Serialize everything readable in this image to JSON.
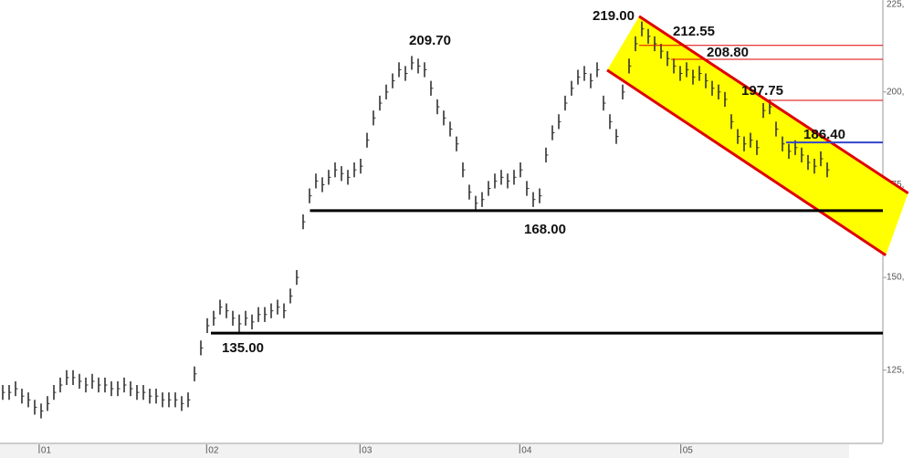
{
  "chart_data": {
    "type": "candlestick",
    "xlim": [
      0,
      130
    ],
    "xticks": [
      {
        "value": 6.7,
        "label": "01"
      },
      {
        "value": 32.9,
        "label": "02"
      },
      {
        "value": 56.9,
        "label": "03"
      },
      {
        "value": 81.9,
        "label": "04"
      },
      {
        "value": 107.1,
        "label": "05"
      }
    ],
    "ylim": [
      105.5,
      224.8
    ],
    "yticks": [
      {
        "value": 225,
        "label": "225,"
      },
      {
        "value": 200,
        "label": "200,"
      },
      {
        "value": 175,
        "label": "175,"
      },
      {
        "value": 150,
        "label": "150,"
      },
      {
        "value": 125,
        "label": "125,"
      }
    ],
    "color": "#333333",
    "high": [
      121,
      121,
      122,
      120,
      119,
      117,
      116,
      118,
      121,
      123,
      125,
      125,
      124,
      123,
      124,
      123,
      123,
      122,
      122,
      123,
      122,
      121,
      121,
      120,
      120,
      119,
      119,
      119,
      118,
      119,
      126,
      133,
      139,
      141,
      144,
      143,
      141,
      140,
      141,
      140,
      142,
      142,
      143,
      144,
      143,
      147,
      152,
      167,
      174,
      178,
      177,
      179,
      181,
      180,
      179,
      181,
      182,
      189,
      195,
      199,
      202,
      205,
      208,
      207,
      209.7,
      209,
      208,
      203,
      198,
      195,
      192,
      188,
      181,
      175,
      172,
      173,
      176,
      178,
      179,
      178,
      179,
      181,
      176,
      173,
      174,
      185,
      191,
      194,
      199,
      203,
      206,
      207,
      205,
      208,
      199,
      194,
      190,
      202,
      209,
      215,
      219,
      217,
      215,
      213,
      211,
      209,
      207,
      208,
      206,
      207,
      205,
      203,
      202,
      200,
      194,
      190,
      188,
      189,
      187,
      197,
      198,
      192,
      188,
      186,
      187,
      185,
      183,
      182,
      184,
      181
    ],
    "low": [
      117,
      117,
      118,
      116,
      115,
      113,
      112,
      114,
      117,
      119,
      121,
      121,
      120,
      119,
      120,
      119,
      119,
      118,
      118,
      119,
      118,
      117,
      117,
      116,
      116,
      115,
      115,
      115,
      114,
      115,
      122,
      129,
      135,
      137,
      140,
      139,
      137,
      135,
      137,
      136,
      138,
      138,
      139,
      140,
      139,
      143,
      148,
      163,
      170,
      174,
      173,
      175,
      177,
      176,
      175,
      177,
      178,
      185,
      191,
      195,
      198,
      201,
      204,
      203,
      206,
      205,
      204,
      199,
      194,
      191,
      188,
      184,
      177,
      171,
      168,
      169,
      172,
      174,
      175,
      174,
      175,
      177,
      172,
      169,
      170,
      181,
      187,
      190,
      195,
      199,
      202,
      203,
      201,
      204,
      195,
      190,
      186,
      198,
      205,
      211,
      215,
      213,
      211,
      209,
      207,
      205,
      203,
      204,
      202,
      203,
      201,
      199,
      198,
      196,
      190,
      186,
      184,
      185,
      183,
      193,
      194,
      188,
      184,
      182,
      183,
      181,
      179,
      178,
      180,
      177
    ],
    "channel": {
      "color": "#ffff00",
      "line_color": "#e00000",
      "upper": [
        [
          100,
          220.4
        ],
        [
          142.1,
          172.7
        ]
      ],
      "lower": [
        [
          95,
          205.9
        ],
        [
          138.6,
          156.0
        ]
      ]
    },
    "annotations": [
      {
        "value": 219,
        "label": "219.00"
      },
      {
        "value": 212.55,
        "label": "212.55",
        "from": 100,
        "color": "#e00000"
      },
      {
        "value": 208.8,
        "label": "208.80",
        "from": 105,
        "color": "#e00000"
      },
      {
        "value": 197.75,
        "label": "197.75",
        "from": 120,
        "color": "#e00000"
      },
      {
        "value": 186.4,
        "label": "186.40",
        "from": 123,
        "color": "#3344cc"
      },
      {
        "value": 209.7,
        "label": "209.70"
      },
      {
        "value": 168,
        "label": "168.00",
        "from": 48.5,
        "color": "#000000"
      },
      {
        "value": 135,
        "label": "135.00",
        "from": 33,
        "color": "#000000"
      }
    ]
  }
}
